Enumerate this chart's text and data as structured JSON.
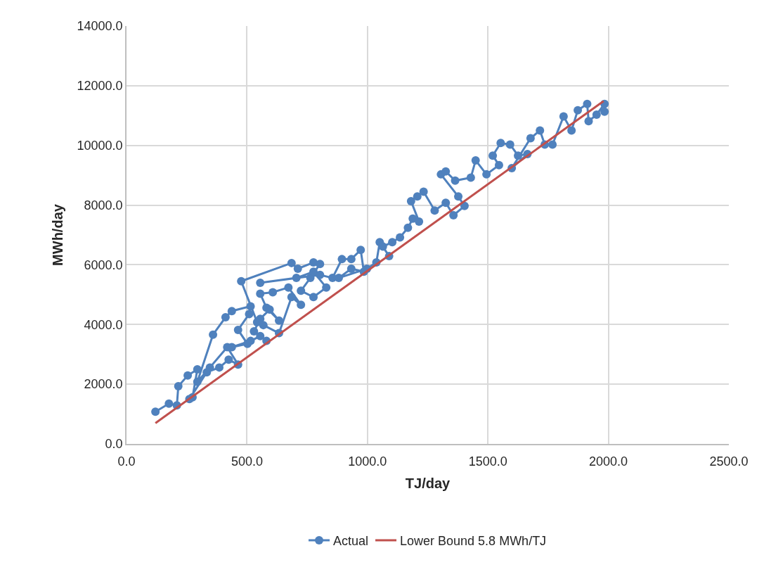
{
  "chart_data": {
    "type": "line",
    "xlabel": "TJ/day",
    "ylabel": "MWh/day",
    "xlim": [
      0,
      2500
    ],
    "xticks": [
      {
        "value": 0,
        "label": "0.0"
      },
      {
        "value": 500,
        "label": "500.0"
      },
      {
        "value": 1000,
        "label": "1000.0"
      },
      {
        "value": 1500,
        "label": "1500.0"
      },
      {
        "value": 2000,
        "label": "2000.0"
      },
      {
        "value": 2500,
        "label": "2500.0"
      }
    ],
    "ylim": [
      0,
      14000
    ],
    "yticks": [
      {
        "value": 0,
        "label": "0.0"
      },
      {
        "value": 2000,
        "label": "2000.0"
      },
      {
        "value": 4000,
        "label": "4000.0"
      },
      {
        "value": 6000,
        "label": "6000.0"
      },
      {
        "value": 8000,
        "label": "8000.0"
      },
      {
        "value": 10000,
        "label": "10000.0"
      },
      {
        "value": 12000,
        "label": "12000.0"
      },
      {
        "value": 14000,
        "label": "14000.0"
      }
    ],
    "grid": true,
    "legend": "bottom",
    "series": [
      {
        "name": "Actual",
        "color": "#4f81bd",
        "marker": "circle",
        "x": [
          120,
          176,
          209,
          215,
          254,
          294,
          274,
          261,
          333,
          385,
          424,
          463,
          418,
          346,
          294,
          359,
          411,
          437,
          515,
          509,
          463,
          502,
          437,
          515,
          555,
          581,
          529,
          555,
          594,
          633,
          581,
          555,
          607,
          672,
          724,
          685,
          633,
          568,
          542,
          476,
          685,
          711,
          776,
          803,
          763,
          724,
          776,
          829,
          776,
          705,
          555,
          803,
          855,
          894,
          933,
          972,
          985,
          933,
          881,
          998,
          1037,
          1051,
          1090,
          1064,
          1103,
          1135,
          1168,
          1188,
          1214,
          1181,
          1207,
          1233,
          1279,
          1325,
          1357,
          1403,
          1377,
          1305,
          1325,
          1364,
          1429,
          1449,
          1494,
          1546,
          1520,
          1553,
          1592,
          1625,
          1664,
          1599,
          1677,
          1716,
          1736,
          1768,
          1814,
          1847,
          1873,
          1912,
          1918,
          1951,
          1984,
          1984
        ],
        "values": [
          1080,
          1350,
          1290,
          1930,
          2290,
          2500,
          1560,
          1500,
          2400,
          2560,
          2820,
          2660,
          3240,
          2560,
          2080,
          3660,
          4240,
          4450,
          4610,
          4350,
          3820,
          3350,
          3240,
          3450,
          3610,
          3450,
          3770,
          4190,
          4500,
          4130,
          4560,
          5030,
          5080,
          5240,
          4660,
          4920,
          3710,
          3980,
          4080,
          5450,
          6060,
          5870,
          6080,
          6030,
          5560,
          5130,
          4920,
          5240,
          5770,
          5560,
          5400,
          5660,
          5560,
          6190,
          6190,
          6500,
          5770,
          5870,
          5560,
          5870,
          6080,
          6760,
          6290,
          6610,
          6760,
          6920,
          7240,
          7550,
          7450,
          8130,
          8290,
          8450,
          7820,
          8080,
          7660,
          7970,
          8290,
          9030,
          9130,
          8820,
          8920,
          9500,
          9030,
          9340,
          9660,
          10080,
          10030,
          9660,
          9710,
          9240,
          10240,
          10500,
          10030,
          10030,
          10970,
          10500,
          11180,
          11390,
          10810,
          11030,
          11390,
          11130
        ]
      },
      {
        "name": "Lower Bound 5.8 MWh/TJ",
        "color": "#c0504d",
        "marker": "none",
        "x": [
          120,
          1980
        ],
        "values": [
          696,
          11484
        ]
      }
    ]
  }
}
